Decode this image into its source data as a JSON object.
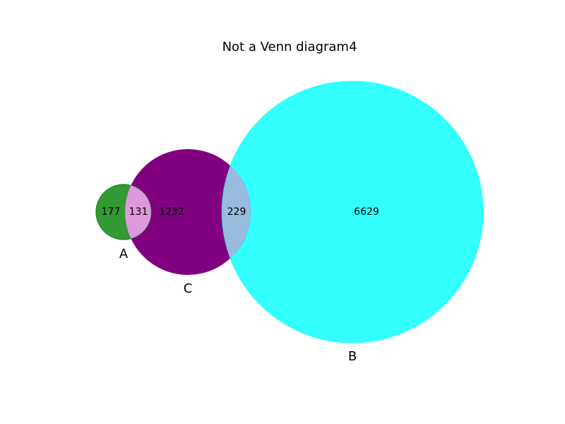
{
  "title": "Not a Venn diagram4",
  "sets": [
    {
      "key": "A",
      "label": "A",
      "color": "#008000"
    },
    {
      "key": "C",
      "label": "C",
      "color": "#800080"
    },
    {
      "key": "B",
      "label": "B",
      "color": "#00ffff"
    }
  ],
  "regions": {
    "A_only": "177",
    "A_and_C": "131",
    "C_only": "1232",
    "C_and_B": "229",
    "B_only": "6629"
  },
  "colors": {
    "A": "#008000",
    "C": "#800080",
    "B": "#00ffff",
    "A_and_C": "#dd99dd",
    "C_and_B": "#99bbdd"
  }
}
